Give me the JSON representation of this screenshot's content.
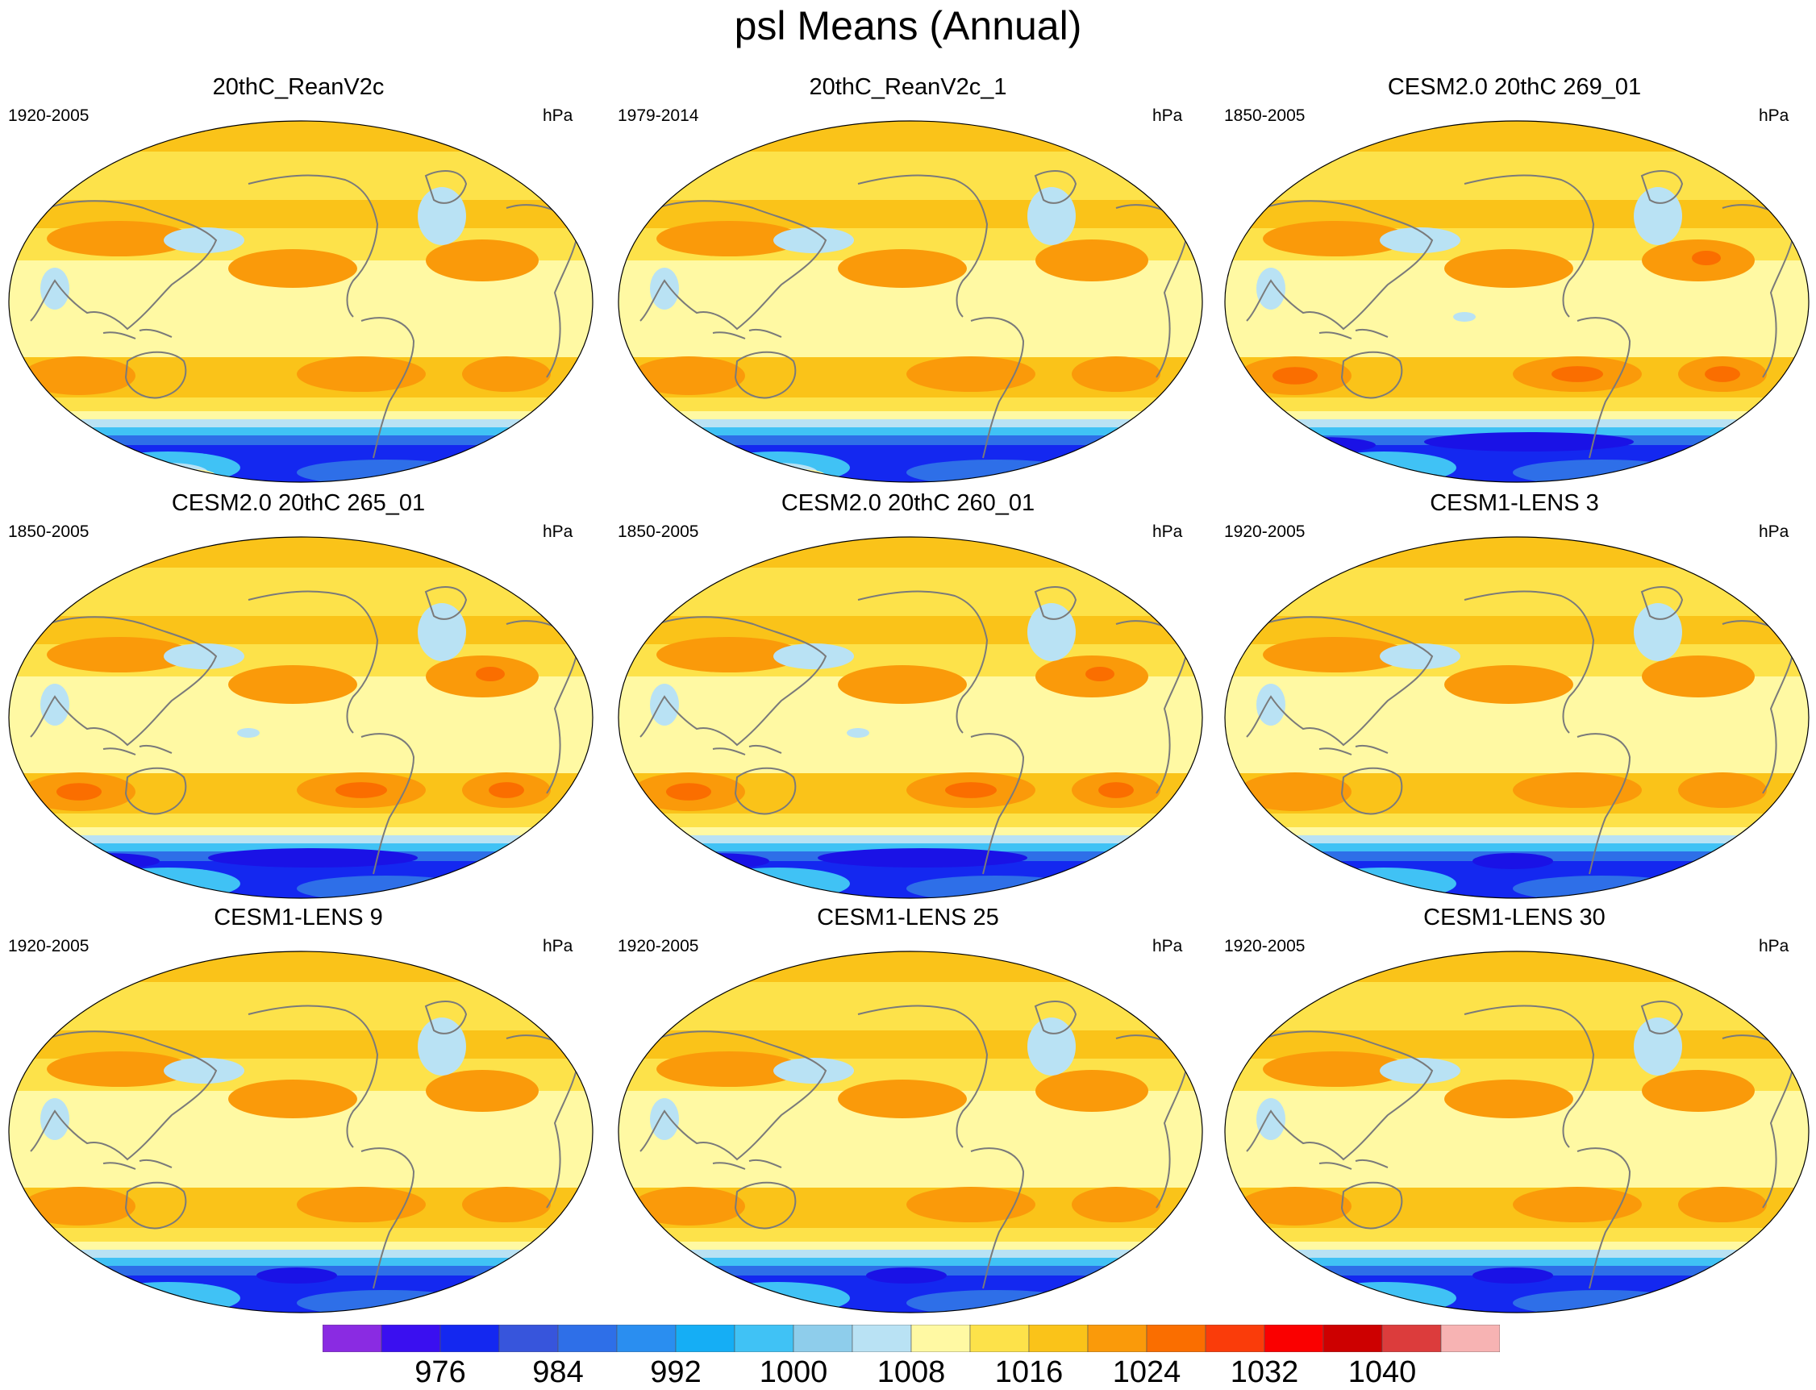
{
  "title": "psl Means (Annual)",
  "panels": [
    {
      "title": "20thC_ReanV2c",
      "period": "1920-2005",
      "units": "hPa",
      "variant": "rean"
    },
    {
      "title": "20thC_ReanV2c_1",
      "period": "1979-2014",
      "units": "hPa",
      "variant": "rean"
    },
    {
      "title": "CESM2.0 20thC 269_01",
      "period": "1850-2005",
      "units": "hPa",
      "variant": "cesm2"
    },
    {
      "title": "CESM2.0 20thC 265_01",
      "period": "1850-2005",
      "units": "hPa",
      "variant": "cesm2"
    },
    {
      "title": "CESM2.0 20thC 260_01",
      "period": "1850-2005",
      "units": "hPa",
      "variant": "cesm2"
    },
    {
      "title": "CESM1-LENS 3",
      "period": "1920-2005",
      "units": "hPa",
      "variant": "lens"
    },
    {
      "title": "CESM1-LENS 9",
      "period": "1920-2005",
      "units": "hPa",
      "variant": "lens"
    },
    {
      "title": "CESM1-LENS 25",
      "period": "1920-2005",
      "units": "hPa",
      "variant": "lens"
    },
    {
      "title": "CESM1-LENS 30",
      "period": "1920-2005",
      "units": "hPa",
      "variant": "lens"
    }
  ],
  "colorbar": {
    "colors": [
      "#8a2be2",
      "#3a0ff0",
      "#1428f0",
      "#3755dc",
      "#2e6fe8",
      "#2a8ef0",
      "#15aef5",
      "#40c2f5",
      "#8ecdeb",
      "#b9e2f4",
      "#fff9a3",
      "#fde24a",
      "#fac319",
      "#fa9a0a",
      "#fa6e00",
      "#fa3c0a",
      "#fa0000",
      "#cd0000",
      "#dc3c3c",
      "#f7b3b3"
    ],
    "labels": [
      "976",
      "984",
      "992",
      "1000",
      "1008",
      "1016",
      "1024",
      "1032",
      "1040"
    ],
    "label_box_indices": [
      2,
      4,
      6,
      8,
      10,
      12,
      14,
      16,
      18
    ]
  },
  "map_colors": {
    "low_deep": "#1428f0",
    "low_mid": "#2e6fe8",
    "low_light": "#40c2f5",
    "light_blue": "#b9e2f4",
    "pale_yellow": "#fff9a3",
    "yellow": "#fde24a",
    "gold": "#fac319",
    "orange": "#fa9a0a",
    "dark_orange": "#fa6e00",
    "coast": "#7a7a7a"
  }
}
